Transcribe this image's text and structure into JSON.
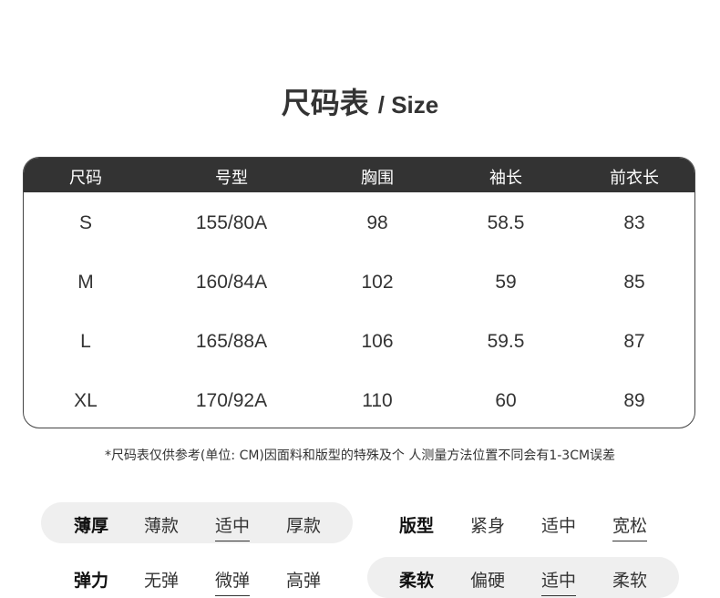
{
  "title": {
    "cn": "尺码表",
    "en": "/ Size"
  },
  "table": {
    "headers": [
      "尺码",
      "号型",
      "胸围",
      "袖长",
      "前衣长"
    ],
    "rows": [
      [
        "S",
        "155/80A",
        "98",
        "58.5",
        "83"
      ],
      [
        "M",
        "160/84A",
        "102",
        "59",
        "85"
      ],
      [
        "L",
        "165/88A",
        "106",
        "59.5",
        "87"
      ],
      [
        "XL",
        "170/92A",
        "110",
        "60",
        "89"
      ]
    ]
  },
  "note": "*尺码表仅供参考(单位: CM)因面料和版型的特殊及个 人测量方法位置不同会有1-3CM误差",
  "attributes": [
    {
      "label": "薄厚",
      "options": [
        "薄款",
        "适中",
        "厚款"
      ],
      "selected": "适中"
    },
    {
      "label": "版型",
      "options": [
        "紧身",
        "适中",
        "宽松"
      ],
      "selected": "宽松"
    },
    {
      "label": "弹力",
      "options": [
        "无弹",
        "微弹",
        "高弹"
      ],
      "selected": "微弹"
    },
    {
      "label": "柔软",
      "options": [
        "偏硬",
        "适中",
        "柔软"
      ],
      "selected": "适中"
    }
  ],
  "colors": {
    "header_bg": "#333333",
    "pill_bg": "#efefef"
  }
}
